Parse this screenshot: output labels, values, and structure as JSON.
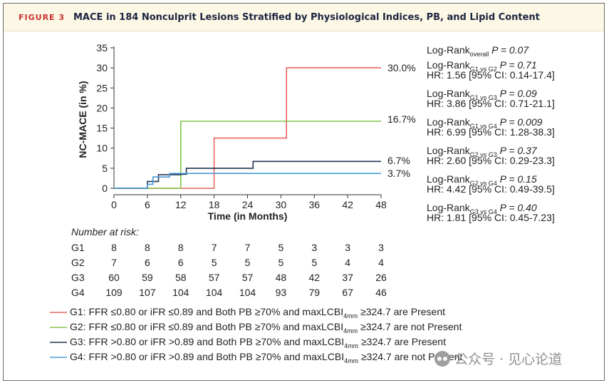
{
  "header": {
    "figure_label": "FIGURE 3",
    "title": "MACE in 184 Nonculprit Lesions Stratified by Physiological Indices, PB, and Lipid Content"
  },
  "colors": {
    "G1": "#e8655c",
    "G2": "#86c44a",
    "G3": "#1e3650",
    "G4": "#4a9ad8",
    "axis": "#333333"
  },
  "chart_data": {
    "type": "line",
    "subtype": "kaplan-meier-step",
    "xlabel": "Time (in Months)",
    "ylabel": "NC-MACE (in %)",
    "xlim": [
      0,
      48
    ],
    "ylim": [
      0,
      35
    ],
    "xticks": [
      0,
      6,
      12,
      18,
      24,
      30,
      36,
      42,
      48
    ],
    "yticks": [
      0,
      5,
      10,
      15,
      20,
      25,
      30,
      35
    ],
    "series": [
      {
        "name": "G1",
        "color_key": "G1",
        "end_label": "30.0%",
        "points": [
          [
            0,
            0
          ],
          [
            18,
            0
          ],
          [
            18,
            12.5
          ],
          [
            31,
            12.5
          ],
          [
            31,
            30
          ],
          [
            48,
            30
          ]
        ]
      },
      {
        "name": "G2",
        "color_key": "G2",
        "end_label": "16.7%",
        "points": [
          [
            0,
            0
          ],
          [
            12,
            0
          ],
          [
            12,
            16.7
          ],
          [
            48,
            16.7
          ]
        ]
      },
      {
        "name": "G3",
        "color_key": "G3",
        "end_label": "6.7%",
        "points": [
          [
            0,
            0
          ],
          [
            6,
            0
          ],
          [
            6,
            1.7
          ],
          [
            8,
            1.7
          ],
          [
            8,
            3.4
          ],
          [
            12,
            3.4
          ],
          [
            12,
            3.5
          ],
          [
            13,
            3.5
          ],
          [
            13,
            5.0
          ],
          [
            25,
            5.0
          ],
          [
            25,
            6.7
          ],
          [
            48,
            6.7
          ]
        ]
      },
      {
        "name": "G4",
        "color_key": "G4",
        "end_label": "3.7%",
        "points": [
          [
            0,
            0
          ],
          [
            6,
            0
          ],
          [
            6,
            1.0
          ],
          [
            7,
            1.0
          ],
          [
            7,
            2.8
          ],
          [
            10,
            2.8
          ],
          [
            10,
            3.7
          ],
          [
            48,
            3.7
          ]
        ]
      }
    ],
    "stats": [
      {
        "label": "Log-Rank",
        "sub": "overall",
        "p_text": "P = 0.07",
        "hr": ""
      },
      {
        "label": "Log-Rank",
        "sub": "G1 vs G2",
        "p_text": "P = 0.71",
        "hr": "HR: 1.56 [95% CI: 0.14-17.4]"
      },
      {
        "label": "Log-Rank",
        "sub": "G1 vs G3",
        "p_text": "P = 0.09",
        "hr": "HR: 3.86 [95% CI: 0.71-21.1]"
      },
      {
        "label": "Log-Rank",
        "sub": "G1 vs G4",
        "p_text": "P = 0.009",
        "hr": "HR: 6.99 [95% CI: 1.28-38.3]"
      },
      {
        "label": "Log-Rank",
        "sub": "G2 vs G3",
        "p_text": "P = 0.37",
        "hr": "HR: 2.60 [95% CI: 0.29-23.3]"
      },
      {
        "label": "Log-Rank",
        "sub": "G2 vs G4",
        "p_text": "P = 0.15",
        "hr": "HR: 4.42 [95% CI: 0.49-39.5]"
      },
      {
        "label": "Log-Rank",
        "sub": "G3 vs G4",
        "p_text": "P = 0.40",
        "hr": "HR: 1.81 [95% CI: 0.45-7.23]"
      }
    ],
    "risk_table": {
      "title": "Number at risk:",
      "rows": [
        {
          "group": "G1",
          "values": [
            8,
            8,
            8,
            7,
            7,
            5,
            3,
            3,
            3
          ]
        },
        {
          "group": "G2",
          "values": [
            7,
            6,
            6,
            5,
            5,
            5,
            5,
            4,
            4
          ]
        },
        {
          "group": "G3",
          "values": [
            60,
            59,
            58,
            57,
            57,
            48,
            42,
            37,
            26
          ]
        },
        {
          "group": "G4",
          "values": [
            109,
            107,
            104,
            104,
            104,
            93,
            79,
            67,
            46
          ]
        }
      ]
    },
    "legend": [
      {
        "color_key": "G1",
        "pre": "G1: FFR ≤0.80 or iFR ≤0.89 and Both PB ≥70% and maxLCBI",
        "sub": "4mm",
        "post": " ≥324.7 are Present"
      },
      {
        "color_key": "G2",
        "pre": "G2: FFR ≤0.80 or iFR ≤0.89 and Both PB ≥70% and maxLCBI",
        "sub": "4mm",
        "post": " ≥324.7 are not Present"
      },
      {
        "color_key": "G3",
        "pre": "G3: FFR >0.80 or iFR >0.89 and Both PB ≥70% and maxLCBI",
        "sub": "4mm",
        "post": " ≥324.7 are Present"
      },
      {
        "color_key": "G4",
        "pre": "G4: FFR >0.80 or iFR >0.89 and Both PB ≥70% and maxLCBI",
        "sub": "4mm",
        "post": " ≥324.7 are not Present"
      }
    ]
  },
  "watermark": {
    "icon": "wechat-icon",
    "text": "公众号 · 见心论道"
  }
}
